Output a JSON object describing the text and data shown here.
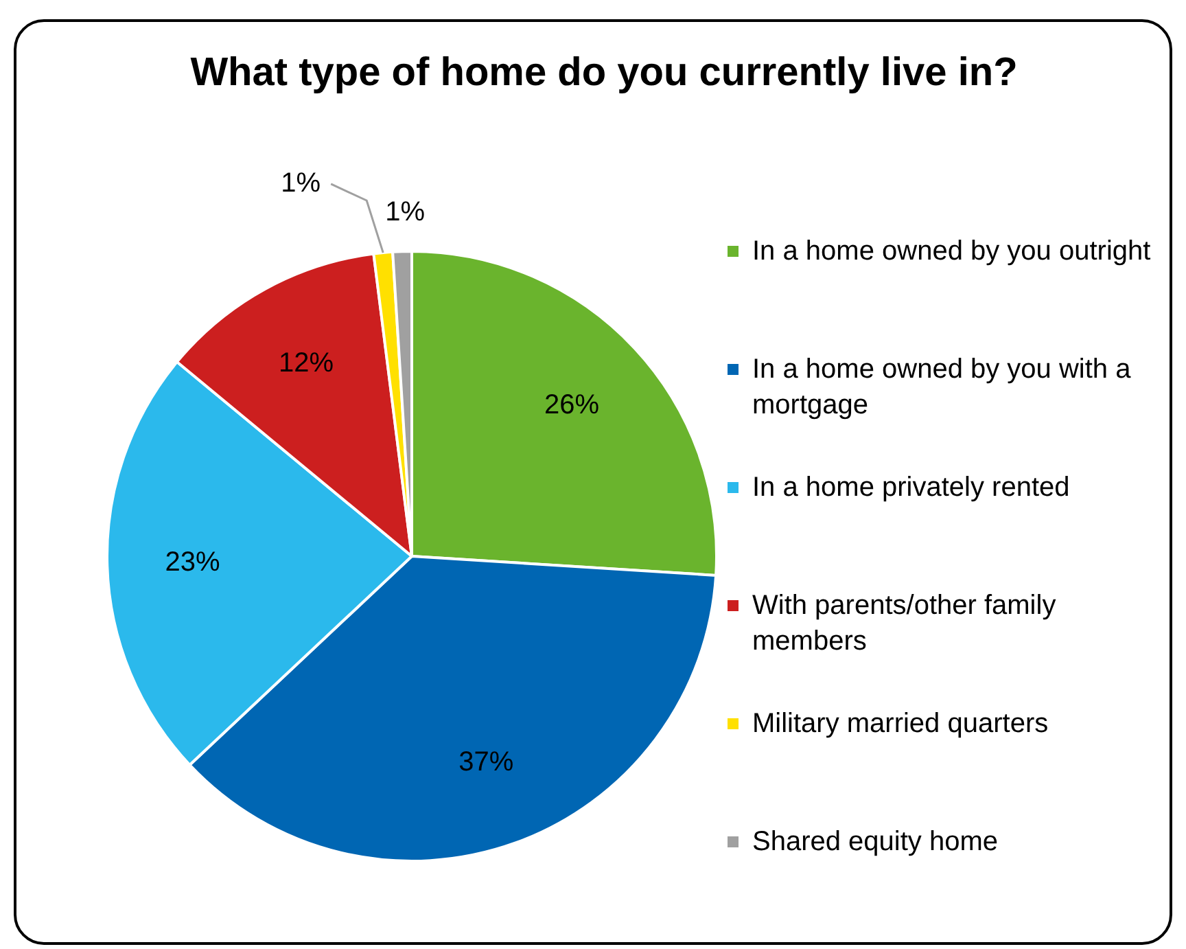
{
  "chart_data": {
    "type": "pie",
    "title": "What type of home do you currently live in?",
    "categories": [
      "In a home owned by you outright",
      "In a home owned by you with a mortgage",
      "In a home privately rented",
      "With parents/other family members",
      "Military married quarters",
      "Shared equity home"
    ],
    "values": [
      26,
      37,
      23,
      12,
      1,
      1
    ],
    "colors": [
      "#6ab42d",
      "#0066b3",
      "#2bb9ec",
      "#cc1f1f",
      "#ffe000",
      "#a0a0a0"
    ],
    "value_labels": [
      "26%",
      "37%",
      "23%",
      "12%",
      "1%",
      "1%"
    ],
    "legend": "right"
  }
}
